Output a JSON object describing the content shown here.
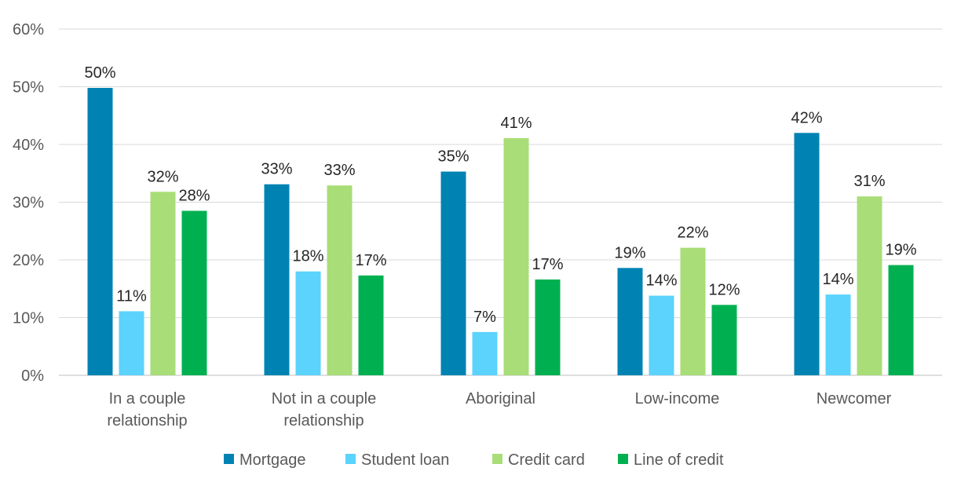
{
  "chart_data": {
    "type": "bar",
    "categories": [
      [
        "In a couple",
        "relationship"
      ],
      [
        "Not in a couple",
        "relationship"
      ],
      [
        "Aboriginal"
      ],
      [
        "Low-income"
      ],
      [
        "Newcomer"
      ]
    ],
    "series": [
      {
        "name": "Mortgage",
        "color": "#0083b3",
        "values": [
          50,
          33,
          35,
          19,
          42
        ],
        "raw": [
          49.8,
          33.1,
          35.3,
          18.6,
          42.0
        ],
        "labels": [
          "50%",
          "33%",
          "35%",
          "19%",
          "42%"
        ]
      },
      {
        "name": "Student loan",
        "color": "#5bd3fd",
        "values": [
          11,
          18,
          7,
          14,
          14
        ],
        "raw": [
          11.1,
          18.0,
          7.5,
          13.8,
          14.0
        ],
        "labels": [
          "11%",
          "18%",
          "7%",
          "14%",
          "14%"
        ]
      },
      {
        "name": "Credit card",
        "color": "#a9dd77",
        "values": [
          32,
          33,
          41,
          22,
          31
        ],
        "raw": [
          31.8,
          32.9,
          41.1,
          22.1,
          31.0
        ],
        "labels": [
          "32%",
          "33%",
          "41%",
          "22%",
          "31%"
        ]
      },
      {
        "name": "Line of credit",
        "color": "#00b050",
        "values": [
          28,
          17,
          17,
          12,
          19
        ],
        "raw": [
          28.5,
          17.3,
          16.6,
          12.2,
          19.1
        ],
        "labels": [
          "28%",
          "17%",
          "17%",
          "12%",
          "19%"
        ]
      }
    ],
    "y_ticks": [
      "0%",
      "10%",
      "20%",
      "30%",
      "40%",
      "50%",
      "60%"
    ],
    "ylim": [
      0,
      60
    ],
    "grid": true,
    "legend": "bottom"
  }
}
